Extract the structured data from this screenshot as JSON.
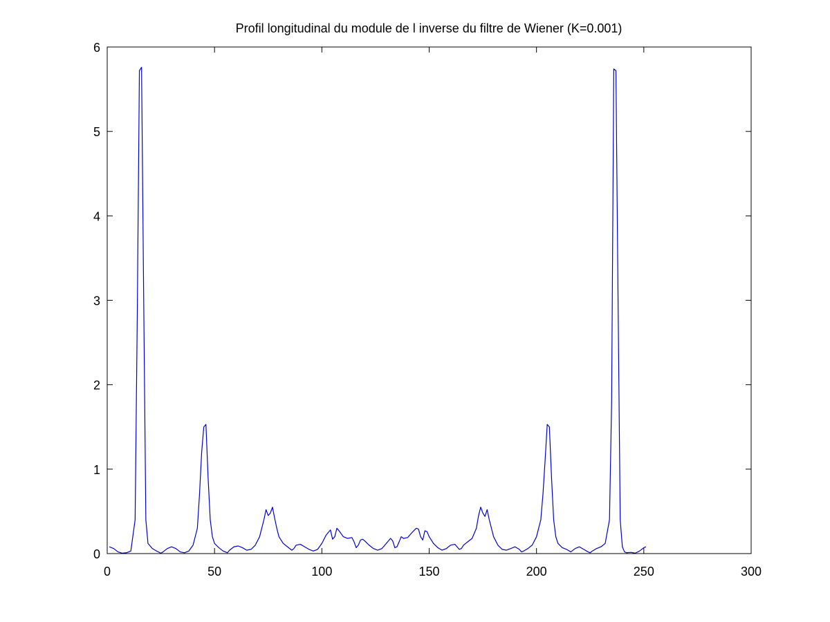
{
  "window": {
    "title": "Profil longitudinal du module de l inverse du filtre de Wiener (K=0.001)"
  },
  "chart_data": {
    "type": "line",
    "title": "Profil longitudinal du module de l inverse du filtre de Wiener (K=0.001)",
    "xlabel": "",
    "ylabel": "",
    "xlim": [
      0,
      300
    ],
    "ylim": [
      0,
      6
    ],
    "grid": false,
    "legend": "none",
    "xticks": [
      0,
      50,
      100,
      150,
      200,
      250,
      300
    ],
    "yticks": [
      0,
      1,
      2,
      3,
      4,
      5,
      6
    ],
    "xtick_labels": [
      "0",
      "50",
      "100",
      "150",
      "200",
      "250",
      "300"
    ],
    "ytick_labels": [
      "0",
      "1",
      "2",
      "3",
      "4",
      "5",
      "6"
    ],
    "series": [
      {
        "color": "#0000cc",
        "x": [
          1,
          3,
          5,
          7,
          9,
          11,
          13,
          14,
          15,
          16,
          17,
          18,
          19,
          21,
          23,
          25,
          26,
          28,
          30,
          32,
          34,
          36,
          38,
          40,
          42,
          43,
          44,
          45,
          46,
          47,
          48,
          49,
          50,
          52,
          54,
          56,
          57,
          59,
          61,
          63,
          65,
          67,
          69,
          71,
          73,
          74,
          75,
          76,
          77,
          78,
          79,
          80,
          82,
          84,
          86,
          87,
          88,
          90,
          92,
          94,
          96,
          98,
          100,
          102,
          103,
          104,
          105,
          106,
          107,
          108,
          110,
          112,
          114,
          115,
          116,
          117,
          118,
          119,
          120,
          122,
          124,
          126,
          128,
          130,
          132,
          133,
          134,
          135,
          136,
          137,
          138,
          140,
          142,
          144,
          145,
          146,
          147,
          148,
          149,
          150,
          152,
          154,
          156,
          158,
          160,
          162,
          163,
          164,
          165,
          166,
          167,
          168,
          170,
          172,
          173,
          174,
          175,
          176,
          177,
          178,
          179,
          180,
          182,
          184,
          186,
          188,
          190,
          192,
          193,
          194,
          196,
          198,
          200,
          202,
          203,
          204,
          205,
          206,
          207,
          208,
          209,
          210,
          212,
          214,
          216,
          218,
          220,
          222,
          224,
          225,
          226,
          228,
          230,
          232,
          234,
          235,
          236,
          237,
          238,
          239,
          240,
          241,
          242,
          244,
          246,
          248,
          250,
          251
        ],
        "y": [
          0.08,
          0.06,
          0.02,
          0.005,
          0.01,
          0.03,
          0.4,
          2.8,
          5.72,
          5.76,
          3.0,
          0.4,
          0.12,
          0.06,
          0.03,
          0.005,
          0.02,
          0.06,
          0.08,
          0.06,
          0.02,
          0.01,
          0.03,
          0.1,
          0.3,
          0.7,
          1.2,
          1.5,
          1.53,
          0.9,
          0.4,
          0.2,
          0.12,
          0.07,
          0.03,
          0.01,
          0.04,
          0.08,
          0.09,
          0.07,
          0.04,
          0.05,
          0.1,
          0.2,
          0.4,
          0.52,
          0.45,
          0.48,
          0.55,
          0.42,
          0.3,
          0.2,
          0.12,
          0.08,
          0.04,
          0.06,
          0.1,
          0.11,
          0.08,
          0.05,
          0.03,
          0.05,
          0.12,
          0.22,
          0.25,
          0.28,
          0.17,
          0.2,
          0.3,
          0.27,
          0.2,
          0.18,
          0.19,
          0.14,
          0.07,
          0.1,
          0.16,
          0.17,
          0.15,
          0.1,
          0.06,
          0.04,
          0.06,
          0.12,
          0.18,
          0.15,
          0.07,
          0.08,
          0.14,
          0.2,
          0.18,
          0.19,
          0.25,
          0.3,
          0.29,
          0.2,
          0.16,
          0.27,
          0.26,
          0.2,
          0.12,
          0.07,
          0.04,
          0.06,
          0.1,
          0.11,
          0.08,
          0.05,
          0.06,
          0.1,
          0.12,
          0.14,
          0.18,
          0.3,
          0.45,
          0.55,
          0.48,
          0.44,
          0.52,
          0.4,
          0.3,
          0.2,
          0.1,
          0.05,
          0.04,
          0.06,
          0.08,
          0.05,
          0.02,
          0.03,
          0.06,
          0.1,
          0.2,
          0.4,
          0.7,
          1.1,
          1.53,
          1.5,
          0.9,
          0.4,
          0.2,
          0.12,
          0.07,
          0.05,
          0.02,
          0.06,
          0.08,
          0.05,
          0.02,
          0.01,
          0.03,
          0.06,
          0.08,
          0.12,
          0.4,
          1.8,
          5.74,
          5.72,
          3.0,
          0.4,
          0.08,
          0.02,
          0.01,
          0.015,
          0.005,
          0.03,
          0.07,
          0.08
        ]
      }
    ]
  }
}
